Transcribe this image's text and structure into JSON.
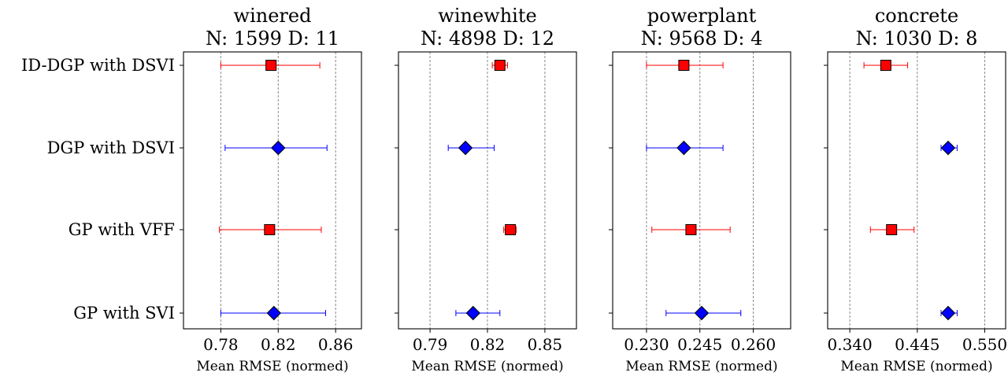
{
  "chart_data": {
    "type": "scatter",
    "methods": [
      "ID-DGP with DSVI",
      "DGP with DSVI",
      "GP with VFF",
      "GP with SVI"
    ],
    "series": [
      {
        "name": "ID-DGP with DSVI",
        "marker": "square",
        "color": "#ff0000"
      },
      {
        "name": "DGP with DSVI",
        "marker": "diamond",
        "color": "#0000ff"
      },
      {
        "name": "GP with VFF",
        "marker": "square",
        "color": "#ff0000"
      },
      {
        "name": "GP with SVI",
        "marker": "diamond",
        "color": "#0000ff"
      }
    ],
    "grid": "vertical dashed at x ticks",
    "panels": [
      {
        "title_line1": "winered",
        "title_line2": "N: 1599 D: 11",
        "xlabel": "Mean RMSE (normed)",
        "xlim": [
          0.754,
          0.878
        ],
        "xticks": [
          0.78,
          0.82,
          0.86
        ],
        "xtick_labels": [
          "0.78",
          "0.82",
          "0.86"
        ],
        "points": [
          {
            "method": "ID-DGP with DSVI",
            "mean": 0.815,
            "low": 0.78,
            "high": 0.849
          },
          {
            "method": "DGP with DSVI",
            "mean": 0.82,
            "low": 0.783,
            "high": 0.854
          },
          {
            "method": "GP with VFF",
            "mean": 0.814,
            "low": 0.779,
            "high": 0.85
          },
          {
            "method": "GP with SVI",
            "mean": 0.817,
            "low": 0.78,
            "high": 0.853
          }
        ]
      },
      {
        "title_line1": "winewhite",
        "title_line2": "N: 4898 D: 12",
        "xlabel": "Mean RMSE (normed)",
        "xlim": [
          0.7735,
          0.8665
        ],
        "xticks": [
          0.79,
          0.82,
          0.85
        ],
        "xtick_labels": [
          "0.79",
          "0.82",
          "0.85"
        ],
        "points": [
          {
            "method": "ID-DGP with DSVI",
            "mean": 0.8265,
            "low": 0.8225,
            "high": 0.8305
          },
          {
            "method": "DGP with DSVI",
            "mean": 0.8085,
            "low": 0.7995,
            "high": 0.8235
          },
          {
            "method": "GP with VFF",
            "mean": 0.832,
            "low": 0.8285,
            "high": 0.835
          },
          {
            "method": "GP with SVI",
            "mean": 0.8125,
            "low": 0.8035,
            "high": 0.8265
          }
        ]
      },
      {
        "title_line1": "powerplant",
        "title_line2": "N: 9568 D: 4",
        "xlabel": "Mean RMSE (normed)",
        "xlim": [
          0.2205,
          0.2705
        ],
        "xticks": [
          0.23,
          0.245,
          0.26
        ],
        "xtick_labels": [
          "0.230",
          "0.245",
          "0.260"
        ],
        "points": [
          {
            "method": "ID-DGP with DSVI",
            "mean": 0.2405,
            "low": 0.23,
            "high": 0.2515
          },
          {
            "method": "DGP with DSVI",
            "mean": 0.2405,
            "low": 0.23,
            "high": 0.2515
          },
          {
            "method": "GP with VFF",
            "mean": 0.2425,
            "low": 0.2315,
            "high": 0.2535
          },
          {
            "method": "GP with SVI",
            "mean": 0.2455,
            "low": 0.2355,
            "high": 0.2565
          }
        ]
      },
      {
        "title_line1": "concrete",
        "title_line2": "N: 1030 D: 8",
        "xlabel": "Mean RMSE (normed)",
        "xlim": [
          0.3055,
          0.5825
        ],
        "xticks": [
          0.34,
          0.445,
          0.55
        ],
        "xtick_labels": [
          "0.340",
          "0.445",
          "0.550"
        ],
        "points": [
          {
            "method": "ID-DGP with DSVI",
            "mean": 0.396,
            "low": 0.362,
            "high": 0.43
          },
          {
            "method": "DGP with DSVI",
            "mean": 0.493,
            "low": 0.482,
            "high": 0.507
          },
          {
            "method": "GP with VFF",
            "mean": 0.405,
            "low": 0.372,
            "high": 0.44
          },
          {
            "method": "GP with SVI",
            "mean": 0.493,
            "low": 0.482,
            "high": 0.507
          }
        ]
      }
    ]
  }
}
